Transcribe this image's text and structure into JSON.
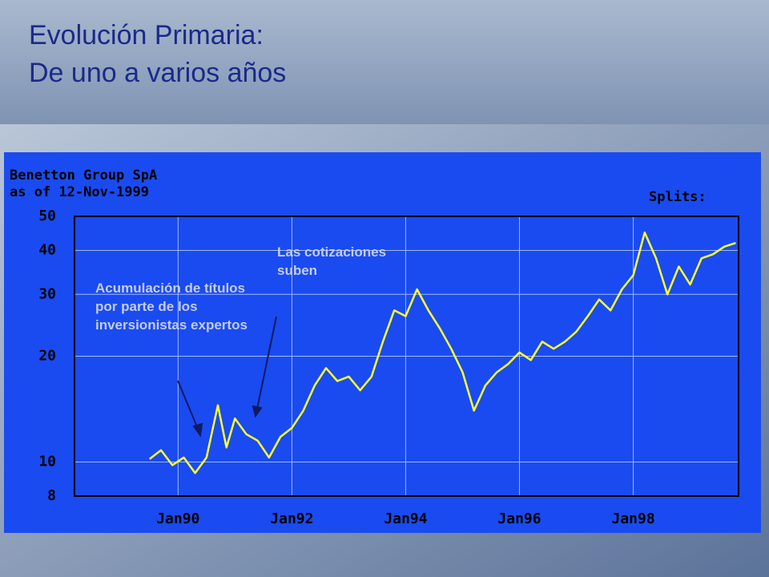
{
  "slide": {
    "title": [
      "Evolución Primaria:",
      "De uno a varios años"
    ]
  },
  "chart_data": {
    "type": "line",
    "title": "Benetton Group SpA",
    "subtitle": "as of 12-Nov-1999",
    "note": "Splits:",
    "annotations": [
      "Acumulación de títulos por parte de los inversionistas expertos",
      "Las cotizaciones suben"
    ],
    "x": [
      1989.5,
      1989.7,
      1989.9,
      1990.1,
      1990.3,
      1990.5,
      1990.7,
      1990.85,
      1991.0,
      1991.2,
      1991.4,
      1991.6,
      1991.8,
      1992.0,
      1992.2,
      1992.4,
      1992.6,
      1992.8,
      1993.0,
      1993.2,
      1993.4,
      1993.6,
      1993.8,
      1994.0,
      1994.2,
      1994.4,
      1994.6,
      1994.8,
      1995.0,
      1995.2,
      1995.4,
      1995.6,
      1995.8,
      1996.0,
      1996.2,
      1996.4,
      1996.6,
      1996.8,
      1997.0,
      1997.2,
      1997.4,
      1997.6,
      1997.8,
      1998.0,
      1998.2,
      1998.4,
      1998.6,
      1998.8,
      1999.0,
      1999.2,
      1999.4,
      1999.6,
      1999.8
    ],
    "values": [
      10.2,
      10.8,
      9.8,
      10.3,
      9.3,
      10.3,
      14.5,
      11,
      13.3,
      12,
      11.5,
      10.3,
      11.8,
      12.5,
      14,
      16.5,
      18.5,
      17,
      17.5,
      16,
      17.5,
      22,
      27,
      26,
      31,
      27,
      24,
      21,
      18,
      14,
      16.5,
      18,
      19,
      20.5,
      19.5,
      22,
      21,
      22,
      23.5,
      26,
      29,
      27,
      31,
      34,
      45,
      38,
      30,
      36,
      32,
      38,
      39,
      41,
      42
    ],
    "color": "#ffff33",
    "y_scale": "log",
    "grid": true,
    "xlim": [
      1988.18,
      1999.85
    ],
    "xticks": [
      {
        "value": 1990,
        "label": "Jan90"
      },
      {
        "value": 1992,
        "label": "Jan92"
      },
      {
        "value": 1994,
        "label": "Jan94"
      },
      {
        "value": 1996,
        "label": "Jan96"
      },
      {
        "value": 1998,
        "label": "Jan98"
      }
    ],
    "ylim": [
      8,
      50
    ],
    "yticks": [
      8,
      10,
      20,
      30,
      40,
      50
    ]
  }
}
